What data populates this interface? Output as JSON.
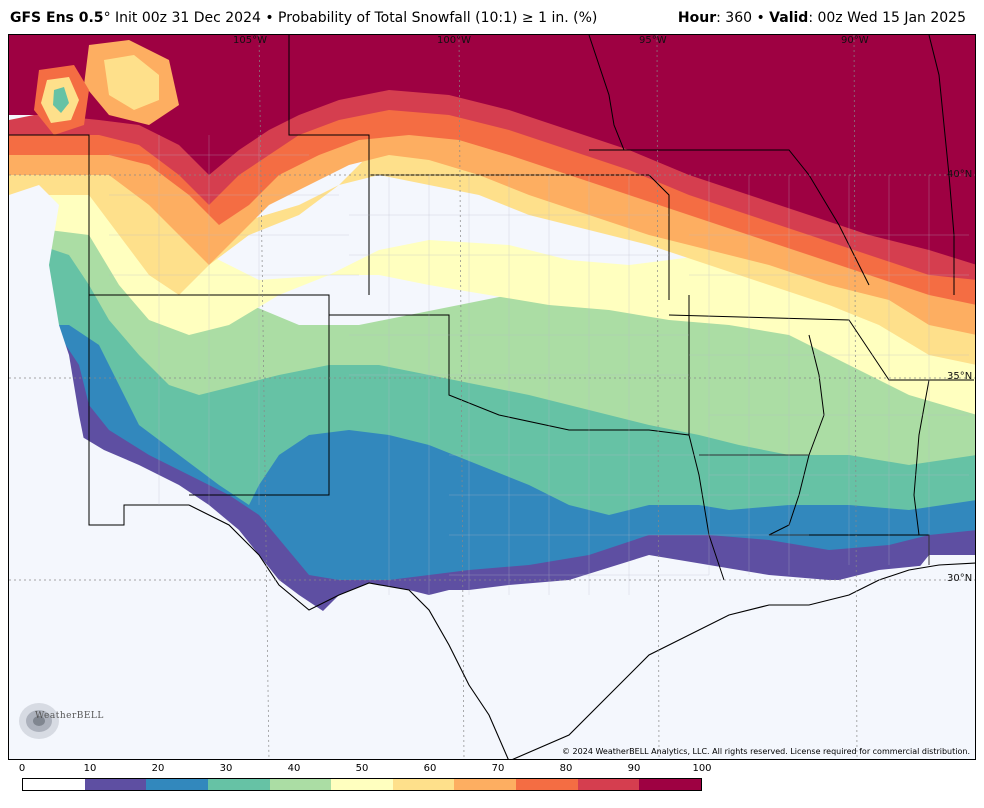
{
  "header": {
    "model": "GFS Ens 0.5",
    "degree": "°",
    "init": " Init 00z 31 Dec 2024 • Probability of Total Snowfall (10:1) ≥ 1 in. (%)",
    "hour_label": "Hour",
    "hour_value": ": 360 • ",
    "valid_label": "Valid",
    "valid_value": ": 00z Wed 15 Jan 2025"
  },
  "map": {
    "lon_labels": [
      "105°W",
      "100°W",
      "95°W",
      "90°W"
    ],
    "lat_labels": [
      "40°N",
      "35°N",
      "30°N"
    ],
    "copyright": "© 2024 WeatherBELL Analytics, LLC. All rights reserved. License required for commercial distribution.",
    "logo_text": "WeatherBELL"
  },
  "legend": {
    "ticks": [
      "0",
      "10",
      "20",
      "30",
      "40",
      "50",
      "60",
      "70",
      "80",
      "90",
      "100"
    ],
    "colors": [
      "#ffffff",
      "#5e4fa2",
      "#3288bd",
      "#66c2a5",
      "#abdda4",
      "#ffffbf",
      "#fee08b",
      "#fdae61",
      "#f46d43",
      "#d53e4f",
      "#9e0142"
    ]
  }
}
